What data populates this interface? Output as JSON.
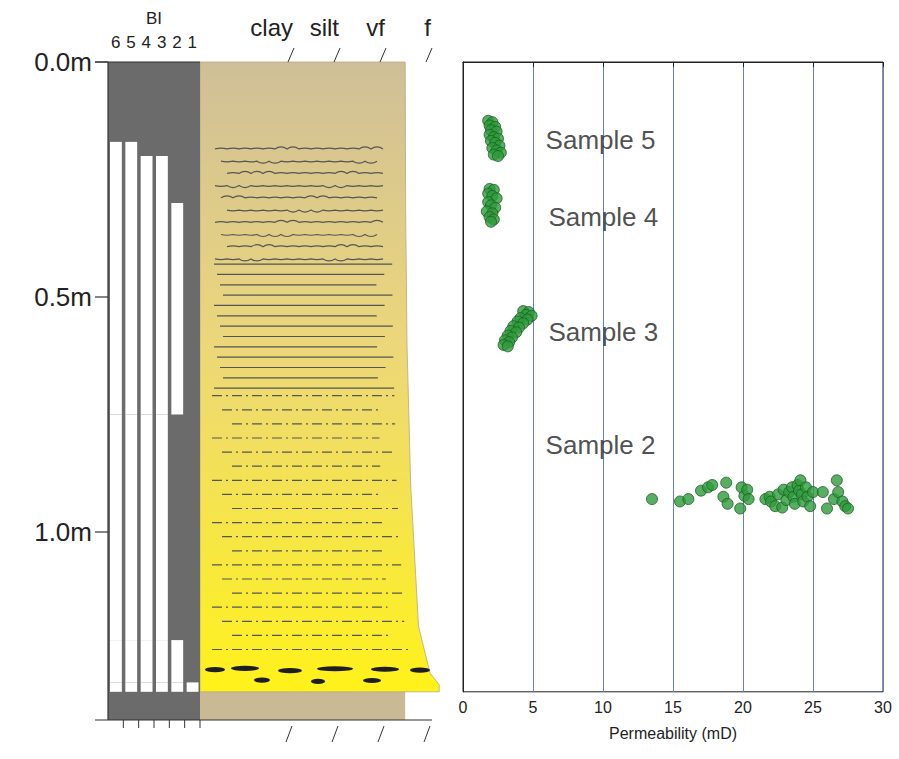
{
  "log": {
    "depth_axis": {
      "ylim": [
        0,
        1.4
      ],
      "yticks": [
        {
          "value": 0,
          "label": "0.0m"
        },
        {
          "value": 0.5,
          "label": "0.5m"
        },
        {
          "value": 1,
          "label": "1.0m"
        }
      ]
    },
    "bioturbation": {
      "title": "BI",
      "scale": [
        6,
        5,
        4,
        3,
        2,
        1
      ],
      "intervals": [
        {
          "top": 0,
          "base": 0.17,
          "bi": 6
        },
        {
          "top": 0.17,
          "base": 0.2,
          "bi": 4
        },
        {
          "top": 0.2,
          "base": 0.3,
          "bi": 2
        },
        {
          "top": 0.3,
          "base": 0.75,
          "bi": 1
        },
        {
          "top": 0.75,
          "base": 1.23,
          "bi": 2
        },
        {
          "top": 1.23,
          "base": 1.32,
          "bi": 1
        },
        {
          "top": 1.32,
          "base": 1.34,
          "bi": 0
        }
      ]
    },
    "grain_size": {
      "classes": [
        {
          "label": "clay",
          "value": 1
        },
        {
          "label": "silt",
          "value": 2
        },
        {
          "label": "vf",
          "value": 3
        },
        {
          "label": "f",
          "value": 4
        }
      ],
      "profile": [
        {
          "depth": 0,
          "grain": 3.46
        },
        {
          "depth": 0.3,
          "grain": 3.47
        },
        {
          "depth": 0.6,
          "grain": 3.5
        },
        {
          "depth": 0.9,
          "grain": 3.58
        },
        {
          "depth": 1.2,
          "grain": 3.75
        },
        {
          "depth": 1.3,
          "grain": 4.0
        },
        {
          "depth": 1.325,
          "grain": 4.2
        },
        {
          "depth": 1.34,
          "grain": 4.2
        }
      ]
    }
  },
  "chart_data": {
    "type": "scatter",
    "x_label": "Permeability (mD)",
    "xlim": [
      0,
      30
    ],
    "xticks": [
      0,
      5,
      10,
      15,
      20,
      25,
      30
    ],
    "ylim": [
      0,
      1.34
    ],
    "yticks": [],
    "tick_labels": "x",
    "grid": true,
    "color": "#2e9b3c",
    "marker": "circle",
    "x": [
      1.8,
      2.1,
      1.9,
      2.3,
      2.0,
      2.4,
      1.9,
      2.2,
      2.5,
      2.0,
      2.3,
      2.6,
      2.1,
      2.4,
      2.7,
      2.2,
      2.5,
      1.9,
      2.2,
      1.8,
      2.1,
      2.4,
      1.8,
      2.0,
      2.3,
      1.7,
      2.1,
      1.9,
      2.2,
      2.0,
      4.3,
      4.7,
      4.5,
      4.9,
      4.1,
      4.6,
      3.9,
      4.3,
      3.6,
      4.0,
      3.4,
      3.8,
      3.2,
      3.5,
      3.0,
      3.3,
      2.9,
      3.2,
      13.5,
      15.5,
      16.1,
      17.0,
      17.5,
      17.8,
      18.6,
      18.8,
      18.9,
      19.8,
      19.9,
      20.1,
      20.3,
      20.4,
      21.6,
      21.9,
      22.0,
      22.3,
      22.5,
      22.8,
      22.9,
      23.1,
      23.3,
      23.5,
      23.6,
      23.7,
      23.9,
      24.0,
      24.1,
      24.2,
      24.3,
      24.5,
      24.6,
      24.8,
      25.0,
      25.7,
      26.0,
      26.5,
      26.7,
      26.8,
      27.1,
      27.3,
      27.5
    ],
    "values": [
      0.125,
      0.128,
      0.135,
      0.138,
      0.145,
      0.148,
      0.155,
      0.16,
      0.163,
      0.168,
      0.172,
      0.178,
      0.183,
      0.188,
      0.193,
      0.197,
      0.2,
      0.27,
      0.272,
      0.28,
      0.285,
      0.29,
      0.298,
      0.305,
      0.31,
      0.318,
      0.322,
      0.33,
      0.335,
      0.34,
      0.53,
      0.532,
      0.538,
      0.54,
      0.545,
      0.548,
      0.552,
      0.556,
      0.562,
      0.565,
      0.572,
      0.575,
      0.582,
      0.586,
      0.592,
      0.596,
      0.602,
      0.605,
      0.93,
      0.935,
      0.93,
      0.912,
      0.905,
      0.9,
      0.925,
      0.895,
      0.94,
      0.95,
      0.905,
      0.923,
      0.91,
      0.93,
      0.93,
      0.925,
      0.935,
      0.945,
      0.92,
      0.948,
      0.91,
      0.932,
      0.915,
      0.905,
      0.925,
      0.94,
      0.9,
      0.912,
      0.89,
      0.92,
      0.935,
      0.905,
      0.925,
      0.945,
      0.915,
      0.915,
      0.95,
      0.93,
      0.89,
      0.915,
      0.935,
      0.945,
      0.95
    ],
    "annotations": [
      {
        "text": "Sample 5",
        "x": 5.9,
        "y": 0.166
      },
      {
        "text": "Sample 4",
        "x": 6.1,
        "y": 0.33
      },
      {
        "text": "Sample 3",
        "x": 6.1,
        "y": 0.574
      },
      {
        "text": "Sample 2",
        "x": 5.9,
        "y": 0.815
      }
    ]
  }
}
